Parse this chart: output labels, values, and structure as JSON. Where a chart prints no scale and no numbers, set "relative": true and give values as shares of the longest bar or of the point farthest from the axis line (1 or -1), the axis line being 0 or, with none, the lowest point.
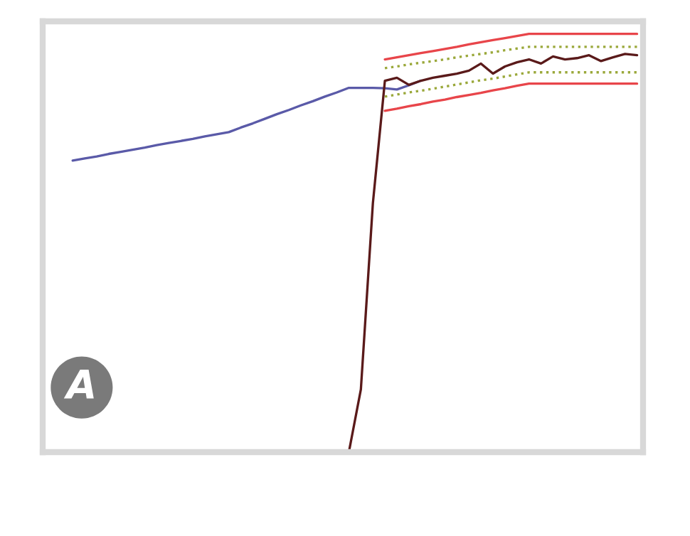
{
  "chart_data": {
    "type": "line",
    "relative": true,
    "categories": [
      null,
      null,
      null,
      null,
      null,
      null,
      null,
      null,
      null,
      null,
      null,
      null,
      null,
      null,
      null,
      null,
      null,
      null,
      null,
      null,
      null,
      null,
      null,
      null,
      null,
      null,
      null,
      null,
      null,
      null,
      null,
      null,
      null,
      null,
      null,
      null,
      null,
      null,
      null,
      null,
      null,
      null,
      null,
      null,
      null,
      null,
      null,
      null,
      null,
      null
    ],
    "annotations": [
      "A"
    ],
    "series": [
      {
        "color": "#5a5aa8",
        "values": [
          null,
          null,
          0.697,
          0.702,
          0.707,
          0.713,
          0.718,
          0.723,
          0.728,
          0.734,
          0.739,
          0.744,
          0.749,
          0.755,
          0.76,
          0.765,
          0.776,
          0.786,
          0.797,
          0.808,
          0.818,
          0.829,
          0.839,
          0.85,
          0.86,
          0.871,
          0.871,
          0.871,
          0.87,
          0.867,
          0.877,
          0.888,
          null,
          null,
          null,
          null,
          null,
          null,
          null,
          null,
          null,
          null,
          null,
          null,
          null,
          null,
          null,
          null,
          null,
          null
        ]
      },
      {
        "color": "#e8454a",
        "values": [
          null,
          null,
          null,
          null,
          null,
          null,
          null,
          null,
          null,
          null,
          null,
          null,
          null,
          null,
          null,
          null,
          null,
          null,
          null,
          null,
          null,
          null,
          null,
          null,
          null,
          null,
          null,
          null,
          0.939,
          0.944,
          0.949,
          0.954,
          0.959,
          0.964,
          0.969,
          0.975,
          0.98,
          0.985,
          0.99,
          0.995,
          1.0,
          1.0,
          1.0,
          1.0,
          1.0,
          1.0,
          1.0,
          1.0,
          1.0,
          1.0
        ]
      },
      {
        "color": "#e8454a",
        "values": [
          null,
          null,
          null,
          null,
          null,
          null,
          null,
          null,
          null,
          null,
          null,
          null,
          null,
          null,
          null,
          null,
          null,
          null,
          null,
          null,
          null,
          null,
          null,
          null,
          null,
          null,
          null,
          null,
          0.816,
          0.821,
          0.827,
          0.832,
          0.838,
          0.843,
          0.849,
          0.854,
          0.859,
          0.865,
          0.87,
          0.876,
          0.881,
          0.881,
          0.881,
          0.881,
          0.881,
          0.881,
          0.881,
          0.881,
          0.881,
          0.881
        ]
      },
      {
        "color": "#9aa83a",
        "line_style": "dotted",
        "values": [
          null,
          null,
          null,
          null,
          null,
          null,
          null,
          null,
          null,
          null,
          null,
          null,
          null,
          null,
          null,
          null,
          null,
          null,
          null,
          null,
          null,
          null,
          null,
          null,
          null,
          null,
          null,
          null,
          0.918,
          0.922,
          0.927,
          0.931,
          0.935,
          0.939,
          0.944,
          0.948,
          0.952,
          0.956,
          0.961,
          0.965,
          0.969,
          0.969,
          0.969,
          0.969,
          0.969,
          0.969,
          0.969,
          0.969,
          0.969,
          0.969
        ]
      },
      {
        "color": "#9aa83a",
        "line_style": "dotted",
        "values": [
          null,
          null,
          null,
          null,
          null,
          null,
          null,
          null,
          null,
          null,
          null,
          null,
          null,
          null,
          null,
          null,
          null,
          null,
          null,
          null,
          null,
          null,
          null,
          null,
          null,
          null,
          null,
          null,
          0.85,
          0.855,
          0.86,
          0.864,
          0.869,
          0.874,
          0.879,
          0.884,
          0.889,
          0.893,
          0.898,
          0.903,
          0.908,
          0.908,
          0.908,
          0.908,
          0.908,
          0.908,
          0.908,
          0.908,
          0.908,
          0.908
        ]
      },
      {
        "color": "#5a1a1a",
        "values": [
          null,
          null,
          null,
          null,
          null,
          null,
          null,
          null,
          null,
          null,
          null,
          null,
          null,
          null,
          null,
          null,
          null,
          null,
          null,
          null,
          null,
          null,
          null,
          null,
          null,
          0,
          0.15,
          0.595,
          0.888,
          0.895,
          0.878,
          0.888,
          0.895,
          0.9,
          0.905,
          0.912,
          0.929,
          0.905,
          0.922,
          0.932,
          0.939,
          0.929,
          0.946,
          0.939,
          0.942,
          0.949,
          0.935,
          0.944,
          0.952,
          0.949
        ]
      }
    ]
  }
}
